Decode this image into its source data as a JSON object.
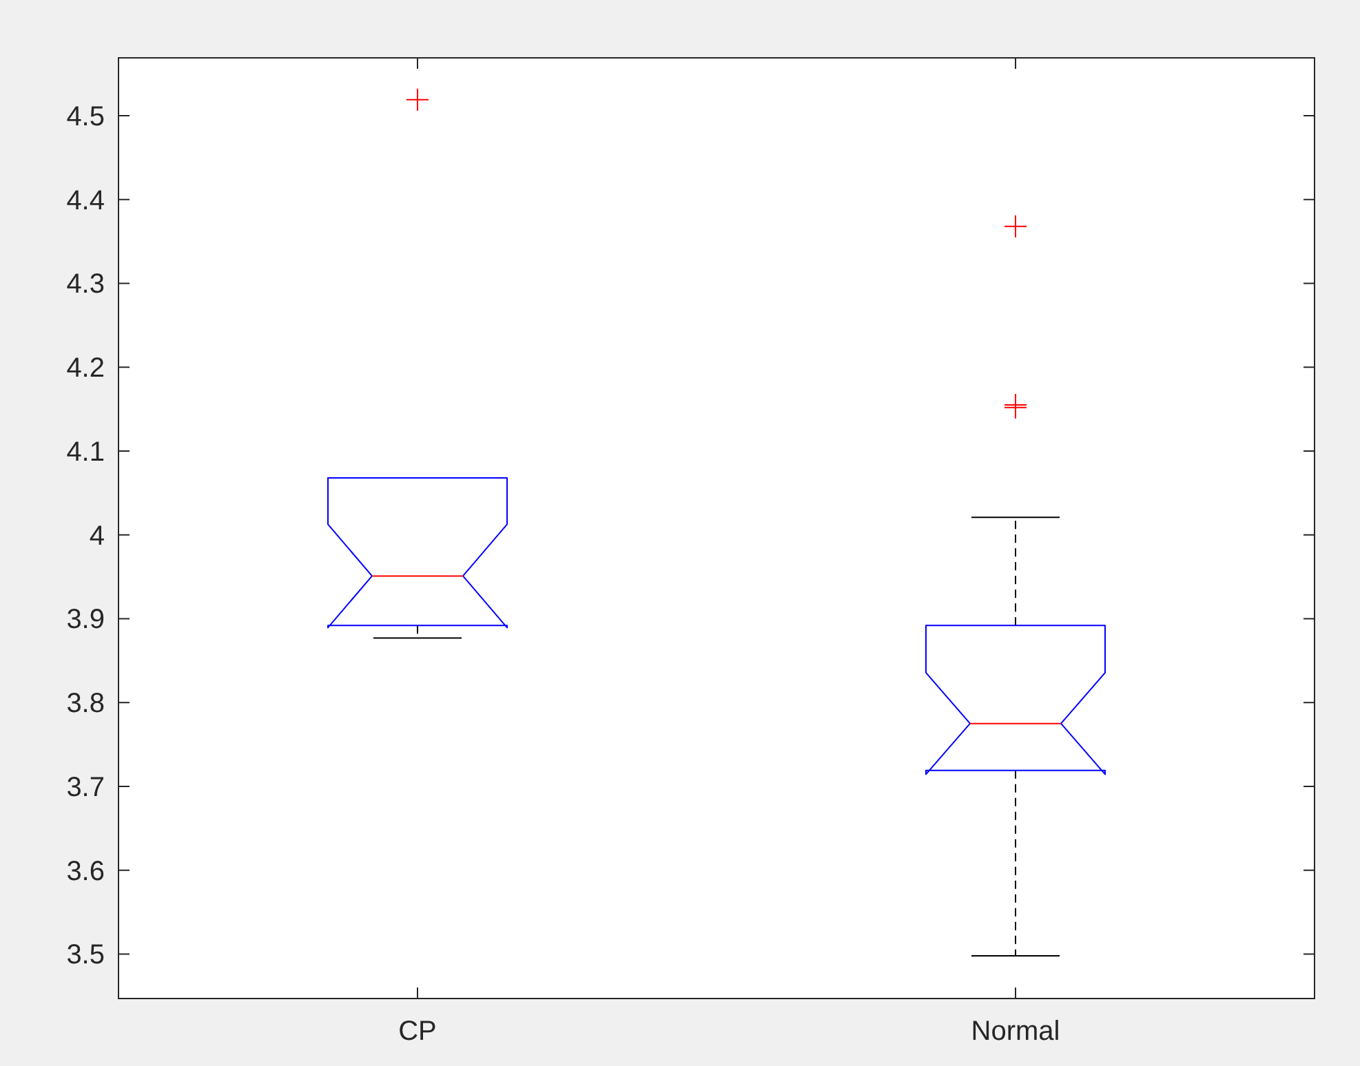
{
  "chart_data": {
    "type": "box",
    "categories": [
      "CP",
      "Normal"
    ],
    "boxes": [
      {
        "low": 3.877,
        "q1": 3.892,
        "median": 3.951,
        "q3": 4.068,
        "high": 4.068,
        "outliers": [
          4.519
        ]
      },
      {
        "low": 3.498,
        "q1": 3.719,
        "median": 3.775,
        "q3": 3.892,
        "high": 4.021,
        "outliers": [
          4.368,
          4.152,
          4.155
        ]
      }
    ],
    "ylim": [
      3.447,
      4.569
    ],
    "yticks": [
      3.5,
      3.6,
      3.7,
      3.8,
      3.9,
      4,
      4.1,
      4.2,
      4.3,
      4.4,
      4.5
    ],
    "grid": false
  }
}
